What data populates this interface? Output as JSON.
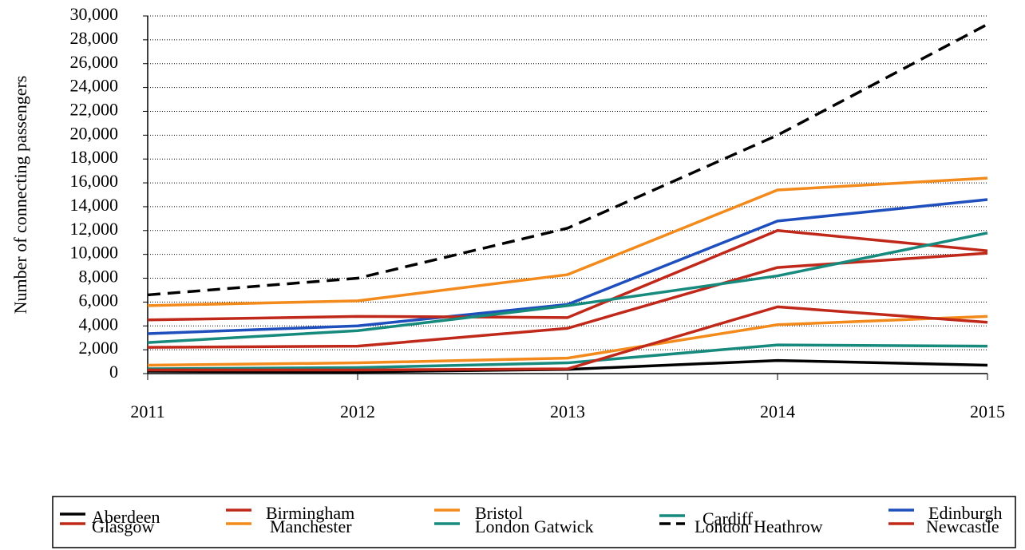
{
  "chart_data": {
    "type": "line",
    "ylabel": "Number of connecting passengers",
    "categories": [
      "2011",
      "2012",
      "2013",
      "2014",
      "2015"
    ],
    "ylim": [
      0,
      30000
    ],
    "yticks": [
      0,
      {
        "value": 2000,
        "label": "2,000"
      },
      {
        "value": 4000,
        "label": "4,000"
      },
      {
        "value": 6000,
        "label": "6,000"
      },
      {
        "value": 8000,
        "label": "8,000"
      },
      {
        "value": 10000,
        "label": "10,000"
      },
      {
        "value": 12000,
        "label": "12,000"
      },
      {
        "value": 14000,
        "label": "14,000"
      },
      {
        "value": 16000,
        "label": "16,000"
      },
      {
        "value": 18000,
        "label": "18,000"
      },
      {
        "value": 20000,
        "label": "20,000"
      },
      {
        "value": 22000,
        "label": "22,000"
      },
      {
        "value": 24000,
        "label": "24,000"
      },
      {
        "value": 26000,
        "label": "26,000"
      },
      {
        "value": 28000,
        "label": "28,000"
      },
      {
        "value": 30000,
        "label": "30,000"
      }
    ],
    "grid": true,
    "legend": "bottom",
    "series": [
      {
        "name": "Aberdeen",
        "color": "#000000",
        "values": [
          200,
          150,
          350,
          1100,
          700
        ]
      },
      {
        "name": "Birmingham",
        "color": "#c0281a",
        "values": [
          2200,
          2300,
          3800,
          8900,
          10100
        ]
      },
      {
        "name": "Bristol",
        "color": "#f28a1c",
        "values": [
          700,
          900,
          1300,
          4100,
          4800
        ]
      },
      {
        "name": "Cardiff",
        "color": "#178a7e",
        "values": [
          400,
          500,
          900,
          2400,
          2300
        ]
      },
      {
        "name": "Edinburgh",
        "color": "#1f4fbd",
        "values": [
          3350,
          4000,
          5800,
          12800,
          14600
        ]
      },
      {
        "name": "Glasgow",
        "color": "#c0281a",
        "values": [
          4500,
          4800,
          4700,
          12000,
          10300
        ]
      },
      {
        "name": "Manchester",
        "color": "#f28a1c",
        "values": [
          5700,
          6100,
          8300,
          15400,
          16400
        ]
      },
      {
        "name": "London Gatwick",
        "color": "#178a7e",
        "values": [
          2600,
          3600,
          5700,
          8200,
          11800
        ]
      },
      {
        "name": "London Heathrow",
        "color": "#000000",
        "dashed": true,
        "values": [
          6600,
          8000,
          12200,
          20000,
          29300
        ]
      },
      {
        "name": "Newcastle",
        "color": "#c0281a",
        "values": [
          300,
          300,
          400,
          5600,
          4300
        ]
      }
    ]
  }
}
